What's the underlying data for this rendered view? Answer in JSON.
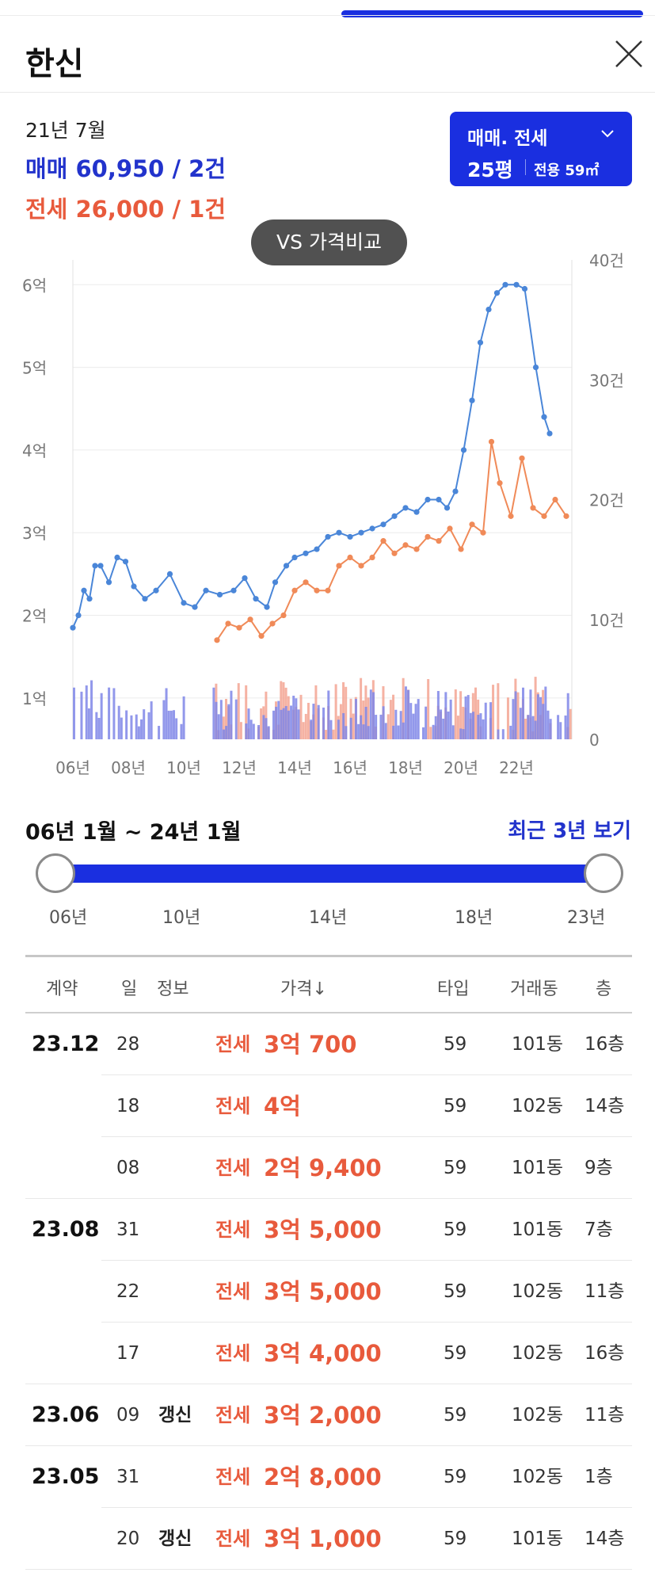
{
  "header": {
    "title": "한신",
    "close_icon": "close-icon"
  },
  "summary": {
    "period": "21년 7월",
    "sale": "매매 60,950 / 2건",
    "jeonse": "전세 26,000 / 1건"
  },
  "type_selector": {
    "label": "매매. 전세",
    "size": "25평",
    "area": "전용 59㎡",
    "icon": "chevron-down-icon"
  },
  "compare_button": "VS 가격비교",
  "colors": {
    "accent": "#1a2fe0",
    "sale": "#4a86d8",
    "jeonse": "#f08a58",
    "sale_text": "#2233cc",
    "jeonse_text": "#e85a3c"
  },
  "chart_data": {
    "type": "line",
    "y_left_ticks": [
      "1억",
      "2억",
      "3억",
      "4억",
      "5억",
      "6억"
    ],
    "y_right_ticks": [
      "0",
      "10건",
      "20건",
      "30건",
      "40건"
    ],
    "x_ticks": [
      "06년",
      "08년",
      "10년",
      "12년",
      "14년",
      "16년",
      "18년",
      "20년",
      "22년"
    ],
    "x_range": [
      2006,
      2024
    ],
    "y_left_range": [
      0.5,
      6.3
    ],
    "y_right_range": [
      0,
      40
    ],
    "series": [
      {
        "name": "매매",
        "color": "#4a86d8",
        "points": [
          [
            2006.0,
            1.85
          ],
          [
            2006.2,
            2.0
          ],
          [
            2006.4,
            2.3
          ],
          [
            2006.6,
            2.2
          ],
          [
            2006.8,
            2.6
          ],
          [
            2007.0,
            2.6
          ],
          [
            2007.3,
            2.4
          ],
          [
            2007.6,
            2.7
          ],
          [
            2007.9,
            2.65
          ],
          [
            2008.2,
            2.35
          ],
          [
            2008.6,
            2.2
          ],
          [
            2009.0,
            2.3
          ],
          [
            2009.5,
            2.5
          ],
          [
            2010.0,
            2.15
          ],
          [
            2010.4,
            2.1
          ],
          [
            2010.8,
            2.3
          ],
          [
            2011.3,
            2.25
          ],
          [
            2011.8,
            2.3
          ],
          [
            2012.2,
            2.45
          ],
          [
            2012.6,
            2.2
          ],
          [
            2013.0,
            2.1
          ],
          [
            2013.3,
            2.4
          ],
          [
            2013.7,
            2.6
          ],
          [
            2014.0,
            2.7
          ],
          [
            2014.4,
            2.75
          ],
          [
            2014.8,
            2.8
          ],
          [
            2015.2,
            2.95
          ],
          [
            2015.6,
            3.0
          ],
          [
            2016.0,
            2.95
          ],
          [
            2016.4,
            3.0
          ],
          [
            2016.8,
            3.05
          ],
          [
            2017.2,
            3.1
          ],
          [
            2017.6,
            3.2
          ],
          [
            2018.0,
            3.3
          ],
          [
            2018.4,
            3.25
          ],
          [
            2018.8,
            3.4
          ],
          [
            2019.2,
            3.4
          ],
          [
            2019.5,
            3.3
          ],
          [
            2019.8,
            3.5
          ],
          [
            2020.1,
            4.0
          ],
          [
            2020.4,
            4.6
          ],
          [
            2020.7,
            5.3
          ],
          [
            2021.0,
            5.7
          ],
          [
            2021.3,
            5.9
          ],
          [
            2021.6,
            6.0
          ],
          [
            2022.0,
            6.0
          ],
          [
            2022.3,
            5.95
          ],
          [
            2022.7,
            5.0
          ],
          [
            2023.0,
            4.4
          ],
          [
            2023.2,
            4.2
          ]
        ]
      },
      {
        "name": "전세",
        "color": "#f08a58",
        "points": [
          [
            2011.2,
            1.7
          ],
          [
            2011.6,
            1.9
          ],
          [
            2012.0,
            1.85
          ],
          [
            2012.4,
            1.95
          ],
          [
            2012.8,
            1.75
          ],
          [
            2013.2,
            1.9
          ],
          [
            2013.6,
            2.0
          ],
          [
            2014.0,
            2.3
          ],
          [
            2014.4,
            2.4
          ],
          [
            2014.8,
            2.3
          ],
          [
            2015.2,
            2.3
          ],
          [
            2015.6,
            2.6
          ],
          [
            2016.0,
            2.7
          ],
          [
            2016.4,
            2.6
          ],
          [
            2016.8,
            2.7
          ],
          [
            2017.2,
            2.9
          ],
          [
            2017.6,
            2.75
          ],
          [
            2018.0,
            2.85
          ],
          [
            2018.4,
            2.8
          ],
          [
            2018.8,
            2.95
          ],
          [
            2019.2,
            2.9
          ],
          [
            2019.6,
            3.05
          ],
          [
            2020.0,
            2.8
          ],
          [
            2020.4,
            3.1
          ],
          [
            2020.8,
            3.0
          ],
          [
            2021.1,
            4.1
          ],
          [
            2021.4,
            3.6
          ],
          [
            2021.8,
            3.2
          ],
          [
            2022.2,
            3.9
          ],
          [
            2022.6,
            3.3
          ],
          [
            2023.0,
            3.2
          ],
          [
            2023.4,
            3.4
          ],
          [
            2023.8,
            3.2
          ]
        ]
      }
    ]
  },
  "range": {
    "label": "06년 1월 ~ 24년 1월",
    "recent_button": "최근 3년 보기",
    "ticks": [
      "06년",
      "10년",
      "14년",
      "18년",
      "23년"
    ]
  },
  "table": {
    "headers": {
      "contract": "계약",
      "day": "일",
      "info": "정보",
      "price": "가격↓",
      "type": "타입",
      "dong": "거래동",
      "floor": "층"
    },
    "rows": [
      {
        "ym": "23.12",
        "day": "28",
        "info": "",
        "kind": "전세",
        "price": "3억 700",
        "type": "59",
        "dong": "101동",
        "floor": "16층"
      },
      {
        "ym": "",
        "day": "18",
        "info": "",
        "kind": "전세",
        "price": "4억",
        "type": "59",
        "dong": "102동",
        "floor": "14층"
      },
      {
        "ym": "",
        "day": "08",
        "info": "",
        "kind": "전세",
        "price": "2억 9,400",
        "type": "59",
        "dong": "101동",
        "floor": "9층"
      },
      {
        "ym": "23.08",
        "day": "31",
        "info": "",
        "kind": "전세",
        "price": "3억 5,000",
        "type": "59",
        "dong": "101동",
        "floor": "7층"
      },
      {
        "ym": "",
        "day": "22",
        "info": "",
        "kind": "전세",
        "price": "3억 5,000",
        "type": "59",
        "dong": "102동",
        "floor": "11층"
      },
      {
        "ym": "",
        "day": "17",
        "info": "",
        "kind": "전세",
        "price": "3억 4,000",
        "type": "59",
        "dong": "102동",
        "floor": "16층"
      },
      {
        "ym": "23.06",
        "day": "09",
        "info": "갱신",
        "kind": "전세",
        "price": "3억 2,000",
        "type": "59",
        "dong": "102동",
        "floor": "11층"
      },
      {
        "ym": "23.05",
        "day": "31",
        "info": "",
        "kind": "전세",
        "price": "2억 8,000",
        "type": "59",
        "dong": "102동",
        "floor": "1층"
      },
      {
        "ym": "",
        "day": "20",
        "info": "갱신",
        "kind": "전세",
        "price": "3억 1,000",
        "type": "59",
        "dong": "101동",
        "floor": "14층"
      }
    ]
  }
}
